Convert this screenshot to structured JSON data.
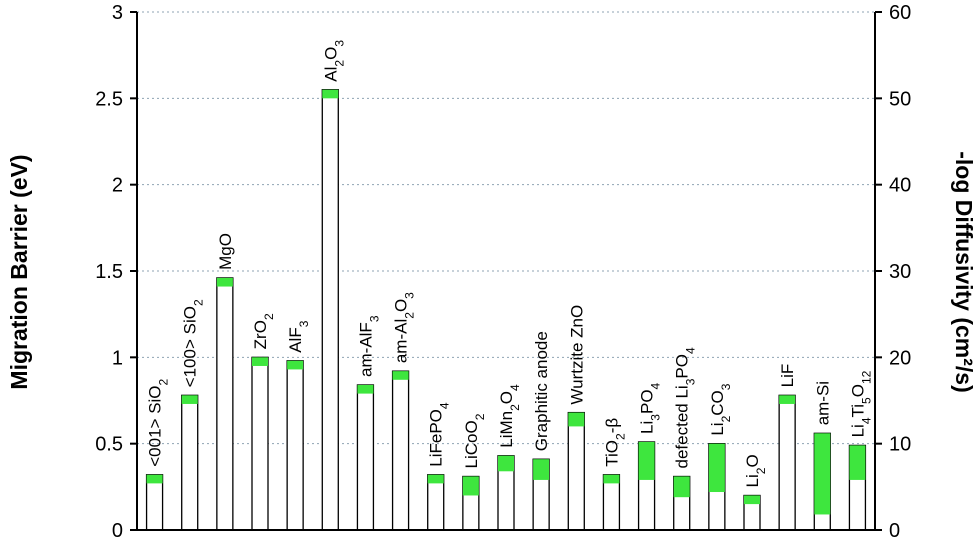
{
  "chart_data": {
    "type": "bar",
    "ylabel": "Migration Barrier (eV)",
    "y2label": "-log Diffusivity (cm²/s)",
    "ylim": [
      0,
      3
    ],
    "y2lim": [
      0,
      60
    ],
    "yticks": [
      "0",
      "0.5",
      "1",
      "1.5",
      "2",
      "2.5",
      "3"
    ],
    "y2ticks": [
      "0",
      "10",
      "20",
      "30",
      "40",
      "50",
      "60"
    ],
    "grid": true,
    "grid_style": "dotted horizontal",
    "colors": {
      "bar_fill": "#ffffff",
      "bar_edge": "#000000",
      "range": "#3ee63e",
      "grid": "#8fa3b3"
    },
    "categories": [
      {
        "base": "<001> SiO",
        "sub": "2",
        "post": ""
      },
      {
        "base": "<100> SiO",
        "sub": "2",
        "post": ""
      },
      {
        "base": "MgO",
        "sub": "",
        "post": ""
      },
      {
        "base": "ZrO",
        "sub": "2",
        "post": ""
      },
      {
        "base": "AlF",
        "sub": "3",
        "post": ""
      },
      {
        "base": "Al",
        "sub": "2",
        "post": "O",
        "sub2": "3"
      },
      {
        "base": "am-AlF",
        "sub": "3",
        "post": ""
      },
      {
        "base": "am-Al",
        "sub": "2",
        "post": "O",
        "sub2": "3"
      },
      {
        "base": "LiFePO",
        "sub": "4",
        "post": ""
      },
      {
        "base": "LiCoO",
        "sub": "2",
        "post": ""
      },
      {
        "base": "LiMn",
        "sub": "2",
        "post": "O",
        "sub2": "4"
      },
      {
        "base": "Graphitic anode",
        "sub": "",
        "post": ""
      },
      {
        "base": "Wurtzite ZnO",
        "sub": "",
        "post": ""
      },
      {
        "base": "TiO",
        "sub": "2",
        "post": "-β"
      },
      {
        "base": "Li",
        "sub": "3",
        "post": "PO",
        "sub2": "4"
      },
      {
        "base": "defected  Li",
        "sub": "3",
        "post": "PO",
        "sub2": "4"
      },
      {
        "base": "Li",
        "sub": "2",
        "post": "CO",
        "sub2": "3"
      },
      {
        "base": "Li",
        "sub": "2",
        "post": "O"
      },
      {
        "base": "LiF",
        "sub": "",
        "post": ""
      },
      {
        "base": "am-Si",
        "sub": "",
        "post": ""
      },
      {
        "base": "Li",
        "sub": "4",
        "post": "Ti",
        "sub2": "5",
        "post2": "O",
        "sub3": "12"
      }
    ],
    "series": [
      {
        "values": [
          0.27,
          0.73,
          1.41,
          0.95,
          0.93,
          2.5,
          0.79,
          0.87,
          0.27,
          0.2,
          0.34,
          0.29,
          0.6,
          0.27,
          0.29,
          0.19,
          0.22,
          0.15,
          0.73,
          0.09,
          0.29
        ]
      },
      {
        "values": [
          0.32,
          0.78,
          1.46,
          1.0,
          0.98,
          2.55,
          0.84,
          0.92,
          0.32,
          0.31,
          0.43,
          0.41,
          0.68,
          0.32,
          0.51,
          0.31,
          0.5,
          0.2,
          0.78,
          0.56,
          0.49
        ]
      }
    ]
  }
}
